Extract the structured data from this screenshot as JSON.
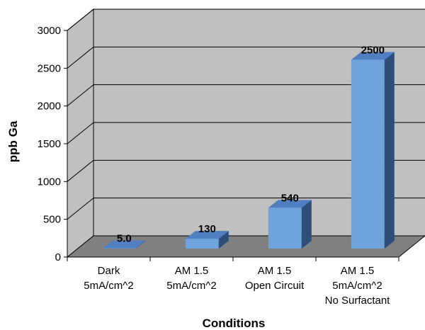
{
  "chart_data": {
    "type": "bar",
    "categories": [
      [
        "Dark",
        "5mA/cm^2"
      ],
      [
        "AM 1.5",
        "5mA/cm^2"
      ],
      [
        "AM 1.5",
        "Open Circuit"
      ],
      [
        "AM 1.5",
        "5mA/cm^2",
        "No Surfactant"
      ]
    ],
    "values": [
      5.0,
      130,
      540,
      2500
    ],
    "data_labels": [
      "5.0",
      "130",
      "540",
      "2500"
    ],
    "xlabel": "Conditions",
    "ylabel": "ppb Ga",
    "ylim": [
      0,
      3000
    ],
    "yticks": [
      "0",
      "500",
      "1000",
      "1500",
      "2000",
      "2500",
      "3000"
    ],
    "grid": true,
    "three_d": true,
    "colors": {
      "bar_front": "#6fa3dd",
      "bar_top": "#4f7fc0",
      "bar_side": "#2e4d78",
      "wall": "#c0c0c0",
      "floor": "#808080"
    }
  }
}
